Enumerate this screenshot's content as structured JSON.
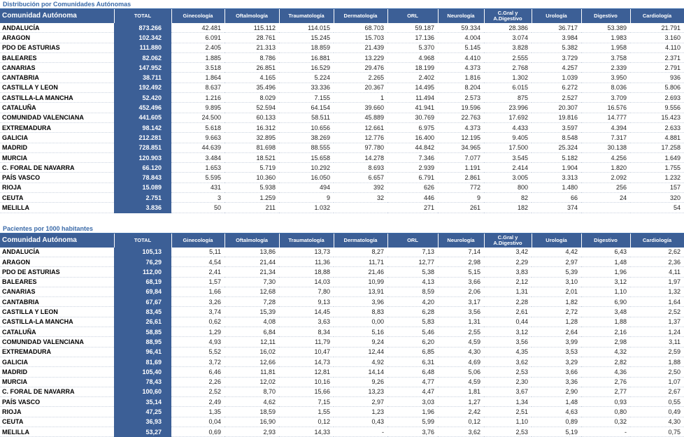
{
  "table1": {
    "title": "Distribución por Comunidades Autónomas",
    "columns": [
      "Comunidad Autónoma",
      "TOTAL",
      "Ginecología",
      "Oftalmología",
      "Traumatología",
      "Dermatología",
      "ORL",
      "Neurología",
      "C.Gral y A.Digestivo",
      "Urología",
      "Digestivo",
      "Cardiología"
    ],
    "rows": [
      [
        "ANDALUCÍA",
        "873.266",
        "42.481",
        "115.112",
        "114.015",
        "68.703",
        "59.187",
        "59.334",
        "28.386",
        "36.717",
        "53.389",
        "21.791"
      ],
      [
        "ARAGON",
        "102.342",
        "6.091",
        "28.761",
        "15.245",
        "15.703",
        "17.136",
        "4.004",
        "3.074",
        "3.984",
        "1.983",
        "3.160"
      ],
      [
        "PDO DE ASTURIAS",
        "111.880",
        "2.405",
        "21.313",
        "18.859",
        "21.439",
        "5.370",
        "5.145",
        "3.828",
        "5.382",
        "1.958",
        "4.110"
      ],
      [
        "BALEARES",
        "82.062",
        "1.885",
        "8.786",
        "16.881",
        "13.229",
        "4.968",
        "4.410",
        "2.555",
        "3.729",
        "3.758",
        "2.371"
      ],
      [
        "CANARIAS",
        "147.952",
        "3.518",
        "26.851",
        "16.529",
        "29.476",
        "18.199",
        "4.373",
        "2.768",
        "4.257",
        "2.339",
        "2.791"
      ],
      [
        "CANTABRIA",
        "38.711",
        "1.864",
        "4.165",
        "5.224",
        "2.265",
        "2.402",
        "1.816",
        "1.302",
        "1.039",
        "3.950",
        "936"
      ],
      [
        "CASTILLA Y LEON",
        "192.492",
        "8.637",
        "35.496",
        "33.336",
        "20.367",
        "14.495",
        "8.204",
        "6.015",
        "6.272",
        "8.036",
        "5.806"
      ],
      [
        "CASTILLA-LA MANCHA",
        "52.420",
        "1.216",
        "8.029",
        "7.155",
        "1",
        "11.494",
        "2.573",
        "875",
        "2.527",
        "3.709",
        "2.693"
      ],
      [
        "CATALUÑA",
        "452.496",
        "9.895",
        "52.594",
        "64.154",
        "39.660",
        "41.941",
        "19.596",
        "23.996",
        "20.307",
        "16.576",
        "9.556"
      ],
      [
        "COMUNIDAD VALENCIANA",
        "441.605",
        "24.500",
        "60.133",
        "58.511",
        "45.889",
        "30.769",
        "22.763",
        "17.692",
        "19.816",
        "14.777",
        "15.423"
      ],
      [
        "EXTREMADURA",
        "98.142",
        "5.618",
        "16.312",
        "10.656",
        "12.661",
        "6.975",
        "4.373",
        "4.433",
        "3.597",
        "4.394",
        "2.633"
      ],
      [
        "GALICIA",
        "212.281",
        "9.663",
        "32.895",
        "38.269",
        "12.776",
        "16.400",
        "12.195",
        "9.405",
        "8.548",
        "7.317",
        "4.881"
      ],
      [
        "MADRID",
        "728.851",
        "44.639",
        "81.698",
        "88.555",
        "97.780",
        "44.842",
        "34.965",
        "17.500",
        "25.324",
        "30.138",
        "17.258"
      ],
      [
        "MURCIA",
        "120.903",
        "3.484",
        "18.521",
        "15.658",
        "14.278",
        "7.346",
        "7.077",
        "3.545",
        "5.182",
        "4.256",
        "1.649"
      ],
      [
        "C. FORAL DE NAVARRA",
        "66.120",
        "1.653",
        "5.719",
        "10.292",
        "8.693",
        "2.939",
        "1.191",
        "2.414",
        "1.904",
        "1.820",
        "1.755"
      ],
      [
        "PAÍS VASCO",
        "78.843",
        "5.595",
        "10.360",
        "16.050",
        "6.657",
        "6.791",
        "2.861",
        "3.005",
        "3.313",
        "2.092",
        "1.232"
      ],
      [
        "RIOJA",
        "15.089",
        "431",
        "5.938",
        "494",
        "392",
        "626",
        "772",
        "800",
        "1.480",
        "256",
        "157"
      ],
      [
        "CEUTA",
        "2.751",
        "3",
        "1.259",
        "9",
        "32",
        "446",
        "9",
        "82",
        "66",
        "24",
        "320"
      ],
      [
        "MELILLA",
        "3.836",
        "50",
        "211",
        "1.032",
        null,
        "271",
        "261",
        "182",
        "374",
        null,
        "54"
      ]
    ]
  },
  "table2": {
    "title": "Pacientes por 1000 habitantes",
    "columns": [
      "Comunidad Autónoma",
      "TOTAL",
      "Ginecología",
      "Oftalmología",
      "Traumatología",
      "Dermatología",
      "ORL",
      "Neurología",
      "C.Gral y A.Digestivo",
      "Urología",
      "Digestivo",
      "Cardiología"
    ],
    "rows": [
      [
        "ANDALUCÍA",
        "105,13",
        "5,11",
        "13,86",
        "13,73",
        "8,27",
        "7,13",
        "7,14",
        "3,42",
        "4,42",
        "6,43",
        "2,62"
      ],
      [
        "ARAGON",
        "76,29",
        "4,54",
        "21,44",
        "11,36",
        "11,71",
        "12,77",
        "2,98",
        "2,29",
        "2,97",
        "1,48",
        "2,36"
      ],
      [
        "PDO DE ASTURIAS",
        "112,00",
        "2,41",
        "21,34",
        "18,88",
        "21,46",
        "5,38",
        "5,15",
        "3,83",
        "5,39",
        "1,96",
        "4,11"
      ],
      [
        "BALEARES",
        "68,19",
        "1,57",
        "7,30",
        "14,03",
        "10,99",
        "4,13",
        "3,66",
        "2,12",
        "3,10",
        "3,12",
        "1,97"
      ],
      [
        "CANARIAS",
        "69,84",
        "1,66",
        "12,68",
        "7,80",
        "13,91",
        "8,59",
        "2,06",
        "1,31",
        "2,01",
        "1,10",
        "1,32"
      ],
      [
        "CANTABRIA",
        "67,67",
        "3,26",
        "7,28",
        "9,13",
        "3,96",
        "4,20",
        "3,17",
        "2,28",
        "1,82",
        "6,90",
        "1,64"
      ],
      [
        "CASTILLA Y LEON",
        "83,45",
        "3,74",
        "15,39",
        "14,45",
        "8,83",
        "6,28",
        "3,56",
        "2,61",
        "2,72",
        "3,48",
        "2,52"
      ],
      [
        "CASTILLA-LA MANCHA",
        "26,61",
        "0,62",
        "4,08",
        "3,63",
        "0,00",
        "5,83",
        "1,31",
        "0,44",
        "1,28",
        "1,88",
        "1,37"
      ],
      [
        "CATALUÑA",
        "58,85",
        "1,29",
        "6,84",
        "8,34",
        "5,16",
        "5,46",
        "2,55",
        "3,12",
        "2,64",
        "2,16",
        "1,24"
      ],
      [
        "COMUNIDAD VALENCIANA",
        "88,95",
        "4,93",
        "12,11",
        "11,79",
        "9,24",
        "6,20",
        "4,59",
        "3,56",
        "3,99",
        "2,98",
        "3,11"
      ],
      [
        "EXTREMADURA",
        "96,41",
        "5,52",
        "16,02",
        "10,47",
        "12,44",
        "6,85",
        "4,30",
        "4,35",
        "3,53",
        "4,32",
        "2,59"
      ],
      [
        "GALICIA",
        "81,69",
        "3,72",
        "12,66",
        "14,73",
        "4,92",
        "6,31",
        "4,69",
        "3,62",
        "3,29",
        "2,82",
        "1,88"
      ],
      [
        "MADRID",
        "105,40",
        "6,46",
        "11,81",
        "12,81",
        "14,14",
        "6,48",
        "5,06",
        "2,53",
        "3,66",
        "4,36",
        "2,50"
      ],
      [
        "MURCIA",
        "78,43",
        "2,26",
        "12,02",
        "10,16",
        "9,26",
        "4,77",
        "4,59",
        "2,30",
        "3,36",
        "2,76",
        "1,07"
      ],
      [
        "C. FORAL DE NAVARRA",
        "100,60",
        "2,52",
        "8,70",
        "15,66",
        "13,23",
        "4,47",
        "1,81",
        "3,67",
        "2,90",
        "2,77",
        "2,67"
      ],
      [
        "PAÍS VASCO",
        "35,14",
        "2,49",
        "4,62",
        "7,15",
        "2,97",
        "3,03",
        "1,27",
        "1,34",
        "1,48",
        "0,93",
        "0,55"
      ],
      [
        "RIOJA",
        "47,25",
        "1,35",
        "18,59",
        "1,55",
        "1,23",
        "1,96",
        "2,42",
        "2,51",
        "4,63",
        "0,80",
        "0,49"
      ],
      [
        "CEUTA",
        "36,93",
        "0,04",
        "16,90",
        "0,12",
        "0,43",
        "5,99",
        "0,12",
        "1,10",
        "0,89",
        "0,32",
        "4,30"
      ],
      [
        "MELILLA",
        "53,27",
        "0,69",
        "2,93",
        "14,33",
        "-",
        "3,76",
        "3,62",
        "2,53",
        "5,19",
        "-",
        "0,75"
      ]
    ]
  }
}
